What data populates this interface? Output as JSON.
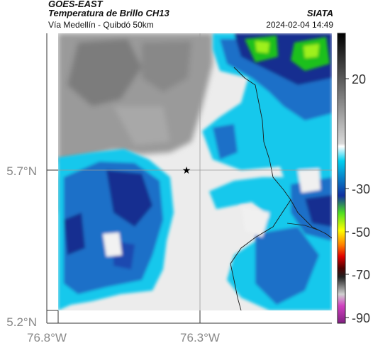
{
  "header": {
    "satellite": "GOES-EAST",
    "product": "Temperatura de Brillo CH13",
    "region": "Vía Medellín - Quibdó 50km",
    "org": "SIATA",
    "datetime": "2024-02-04 14:49"
  },
  "map": {
    "lat_ticks": [
      "5.7°N",
      "5.2°N"
    ],
    "lon_ticks": [
      "76.8°W",
      "76.3°W"
    ],
    "marker": "star-icon"
  },
  "colorbar": {
    "ticks": [
      "20",
      "-30",
      "-50",
      "-70",
      "-90"
    ],
    "colors": [
      "#222222",
      "#888888",
      "#f2f2f2",
      "#00b8e8",
      "#1b3fa6",
      "#39d612",
      "#ffff00",
      "#ff0000",
      "#c000c0"
    ]
  }
}
